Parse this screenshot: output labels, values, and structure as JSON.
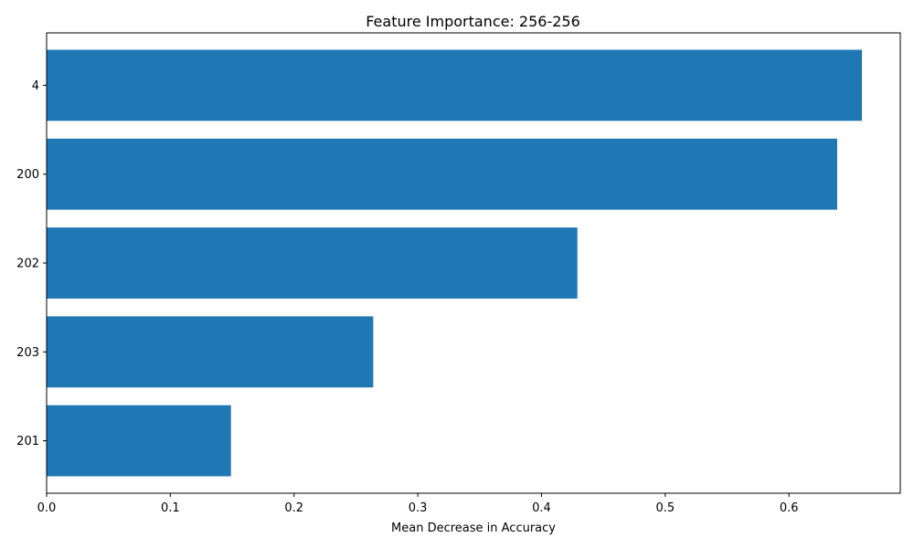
{
  "chart_data": {
    "type": "bar",
    "orientation": "horizontal",
    "title": "Feature Importance: 256-256",
    "xlabel": "Mean Decrease in Accuracy",
    "ylabel": "",
    "categories": [
      "4",
      "200",
      "202",
      "203",
      "201"
    ],
    "values": [
      0.659,
      0.639,
      0.429,
      0.264,
      0.149
    ],
    "xlim": [
      0,
      0.69
    ],
    "xticks": [
      "0.0",
      "0.1",
      "0.2",
      "0.3",
      "0.4",
      "0.5",
      "0.6"
    ],
    "bar_color": "#1f77b4",
    "grid": false,
    "legend": "none"
  }
}
